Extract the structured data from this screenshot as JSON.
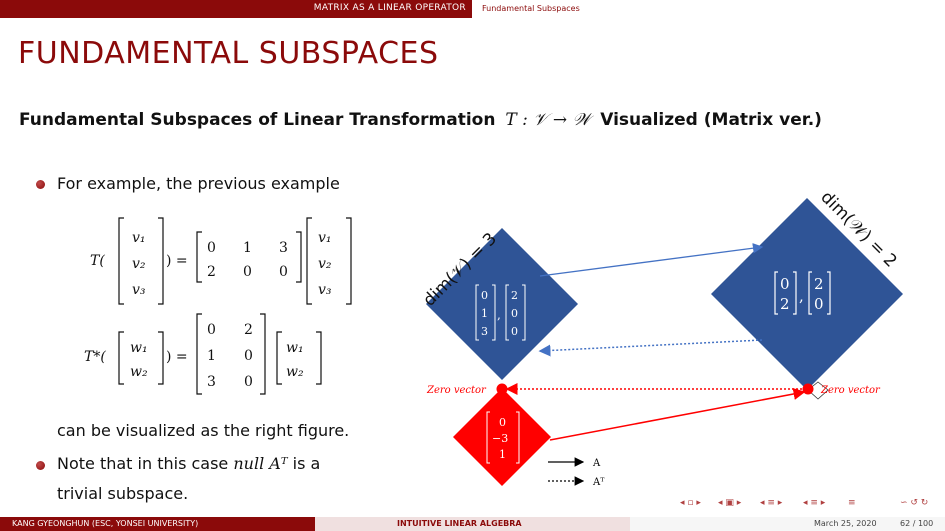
{
  "header": {
    "section": "MATRIX AS A LINEAR OPERATOR",
    "subsection": "Fundamental Subspaces"
  },
  "title": "FUNDAMENTAL SUBSPACES",
  "heading": {
    "prefix": "Fundamental Subspaces of Linear Transformation",
    "math": "T : 𝒱 → 𝒲",
    "suffix": "Visualized (Matrix ver.)"
  },
  "body": {
    "bullet1": "For example, the previous example",
    "caption": "can be visualized as the right figure.",
    "bullet2_prefix": "Note that in this case",
    "bullet2_math": "null Aᵀ",
    "bullet2_suffix": "is a",
    "bullet2_line2": "trivial subspace."
  },
  "equations": {
    "T_lhs": "T(",
    "Tstar_lhs": "T*(",
    "close_eq": ") =",
    "v_vector": [
      "v₁",
      "v₂",
      "v₃"
    ],
    "w_vector": [
      "w₁",
      "w₂"
    ],
    "A_matrix": [
      [
        "0",
        "1",
        "3"
      ],
      [
        "2",
        "0",
        "0"
      ]
    ],
    "AT_matrix": [
      [
        "0",
        "2"
      ],
      [
        "1",
        "0"
      ],
      [
        "3",
        "0"
      ]
    ]
  },
  "diagram": {
    "dim_v_label": "dim(𝒱) = 3",
    "dim_w_label": "dim(𝒲) = 2",
    "row_space_vectors": [
      [
        "0",
        "1",
        "3"
      ],
      [
        "2",
        "0",
        "0"
      ]
    ],
    "col_space_vectors": [
      [
        "0",
        "2"
      ],
      [
        "2",
        "0"
      ]
    ],
    "null_space_vector": [
      "0",
      "−3",
      "1"
    ],
    "zero_vector_left": "Zero vector",
    "zero_vector_right": "Zero vector",
    "legend_A": "A",
    "legend_AT": "Aᵀ",
    "colors": {
      "blue": "#2f5496",
      "red": "#ff0000",
      "arrow_blue": "#4472c4",
      "dark_red": "#8b0a0a"
    }
  },
  "footer": {
    "author": "KANG GYEONGHUN  (ESC, YONSEI UNIVERSITY)",
    "title": "INTUITIVE LINEAR ALGEBRA",
    "date": "March 25, 2020",
    "page": "62 / 100"
  }
}
